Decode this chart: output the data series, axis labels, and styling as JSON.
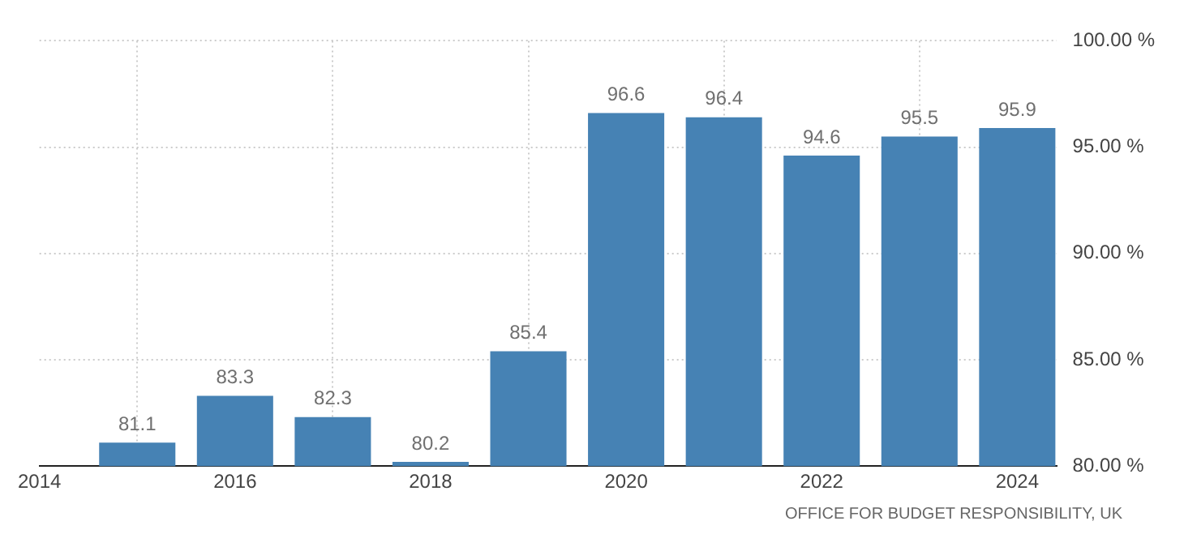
{
  "chart_data": {
    "type": "bar",
    "x": [
      2015,
      2016,
      2017,
      2018,
      2019,
      2020,
      2021,
      2022,
      2023,
      2024
    ],
    "values": [
      81.1,
      83.3,
      82.3,
      80.2,
      85.4,
      96.6,
      96.4,
      94.6,
      95.5,
      95.9
    ],
    "color": "#4682b4",
    "xlim": [
      2014,
      2024.4
    ],
    "xticks": [
      2014,
      2016,
      2018,
      2020,
      2022,
      2024
    ],
    "ylim": [
      80,
      100
    ],
    "yticks": [
      {
        "value": 80,
        "label": "80.00 %"
      },
      {
        "value": 85,
        "label": "85.00 %"
      },
      {
        "value": 90,
        "label": "90.00 %"
      },
      {
        "value": 95,
        "label": "95.00 %"
      },
      {
        "value": 100,
        "label": "100.00 %"
      }
    ],
    "grid": true,
    "legend": false,
    "data_labels": true,
    "annotations": [
      "OFFICE FOR BUDGET RESPONSIBILITY, UK"
    ]
  }
}
